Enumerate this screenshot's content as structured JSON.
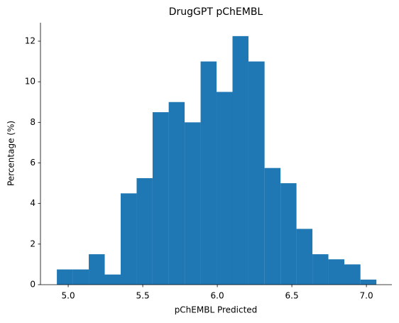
{
  "chart_data": {
    "type": "histogram",
    "title": "DrugGPT pChEMBL",
    "xlabel": "pChEMBL Predicted",
    "ylabel": "Percentage (%)",
    "bins": [
      4.924,
      5.031,
      5.138,
      5.245,
      5.352,
      5.459,
      5.566,
      5.674,
      5.781,
      5.888,
      5.995,
      6.102,
      6.209,
      6.317,
      6.424,
      6.531,
      6.638,
      6.745,
      6.852,
      6.96,
      7.067
    ],
    "counts": [
      0.75,
      0.75,
      1.5,
      0.5,
      4.5,
      5.25,
      8.5,
      9,
      8,
      11,
      9.5,
      12.25,
      11,
      5.75,
      5,
      2.75,
      1.5,
      1.25,
      1.0,
      0.25
    ],
    "color": "#1f77b4",
    "xlim": [
      4.814,
      7.171
    ],
    "ylim": [
      0,
      12.91
    ],
    "xticks": [
      {
        "value": 5,
        "label": "5.0"
      },
      5.5,
      {
        "value": 6,
        "label": "6.0"
      },
      6.5,
      {
        "value": 7,
        "label": "7.0"
      }
    ],
    "yticks": [
      0,
      2,
      4,
      6,
      8,
      10,
      12
    ]
  }
}
